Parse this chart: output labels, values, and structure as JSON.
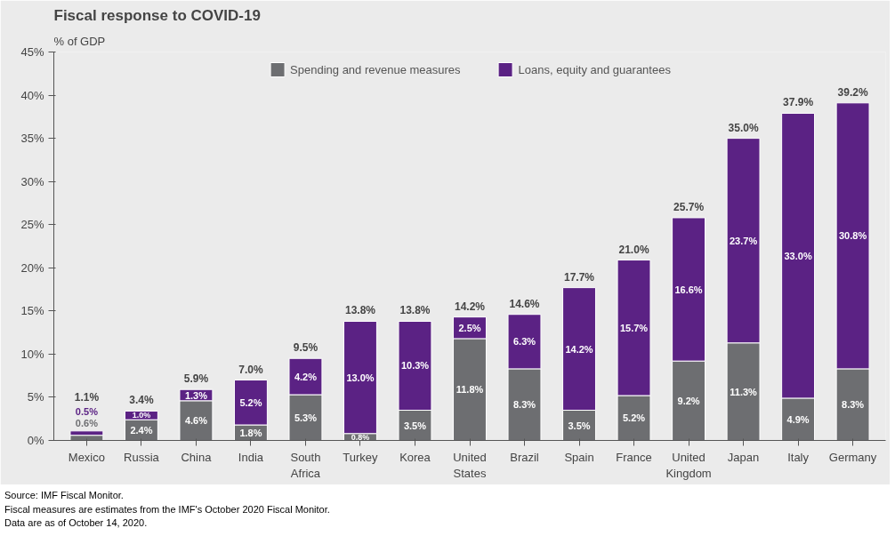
{
  "chart_data": {
    "type": "bar",
    "title": "Fiscal response to COVID-19",
    "ylabel": "% of GDP",
    "categories": [
      "Mexico",
      "Russia",
      "China",
      "India",
      "South Africa",
      "Turkey",
      "Korea",
      "United States",
      "Brazil",
      "Spain",
      "France",
      "United Kingdom",
      "Japan",
      "Italy",
      "Germany"
    ],
    "stacked": true,
    "series": [
      {
        "name": "Spending and revenue measures",
        "color": "#6d6e71",
        "values": [
          0.6,
          2.4,
          4.6,
          1.8,
          5.3,
          0.8,
          3.5,
          11.8,
          8.3,
          3.5,
          5.2,
          9.2,
          11.3,
          4.9,
          8.3
        ],
        "value_labels": [
          "0.6%",
          "2.4%",
          "4.6%",
          "1.8%",
          "5.3%",
          "0.8%",
          "3.5%",
          "11.8%",
          "8.3%",
          "3.5%",
          "5.2%",
          "9.2%",
          "11.3%",
          "4.9%",
          "8.3%"
        ]
      },
      {
        "name": "Loans, equity and guarantees",
        "color": "#5b2284",
        "values": [
          0.5,
          1.0,
          1.3,
          5.2,
          4.2,
          13.0,
          10.3,
          2.5,
          6.3,
          14.2,
          15.7,
          16.6,
          23.7,
          33.0,
          30.8
        ],
        "value_labels": [
          "0.5%",
          "1.0%",
          "1.3%",
          "5.2%",
          "4.2%",
          "13.0%",
          "10.3%",
          "2.5%",
          "6.3%",
          "14.2%",
          "15.7%",
          "16.6%",
          "23.7%",
          "33.0%",
          "30.8%"
        ]
      }
    ],
    "totals": [
      "1.1%",
      "3.4%",
      "5.9%",
      "7.0%",
      "9.5%",
      "13.8%",
      "13.8%",
      "14.2%",
      "14.6%",
      "17.7%",
      "21.0%",
      "25.7%",
      "35.0%",
      "37.9%",
      "39.2%"
    ],
    "ylim": [
      0,
      45
    ],
    "yticks": [
      {
        "value": 0,
        "label": "0%"
      },
      {
        "value": 5,
        "label": "5%"
      },
      {
        "value": 10,
        "label": "10%"
      },
      {
        "value": 15,
        "label": "15%"
      },
      {
        "value": 20,
        "label": "20%"
      },
      {
        "value": 25,
        "label": "25%"
      },
      {
        "value": 30,
        "label": "30%"
      },
      {
        "value": 35,
        "label": "35%"
      },
      {
        "value": 40,
        "label": "40%"
      },
      {
        "value": 45,
        "label": "45%"
      }
    ],
    "grid": false,
    "legend": "top",
    "annotations": [
      "Source: IMF Fiscal Monitor.",
      "Fiscal measures are estimates from the IMF's October 2020 Fiscal Monitor.",
      "Data are as of October 14, 2020."
    ]
  }
}
